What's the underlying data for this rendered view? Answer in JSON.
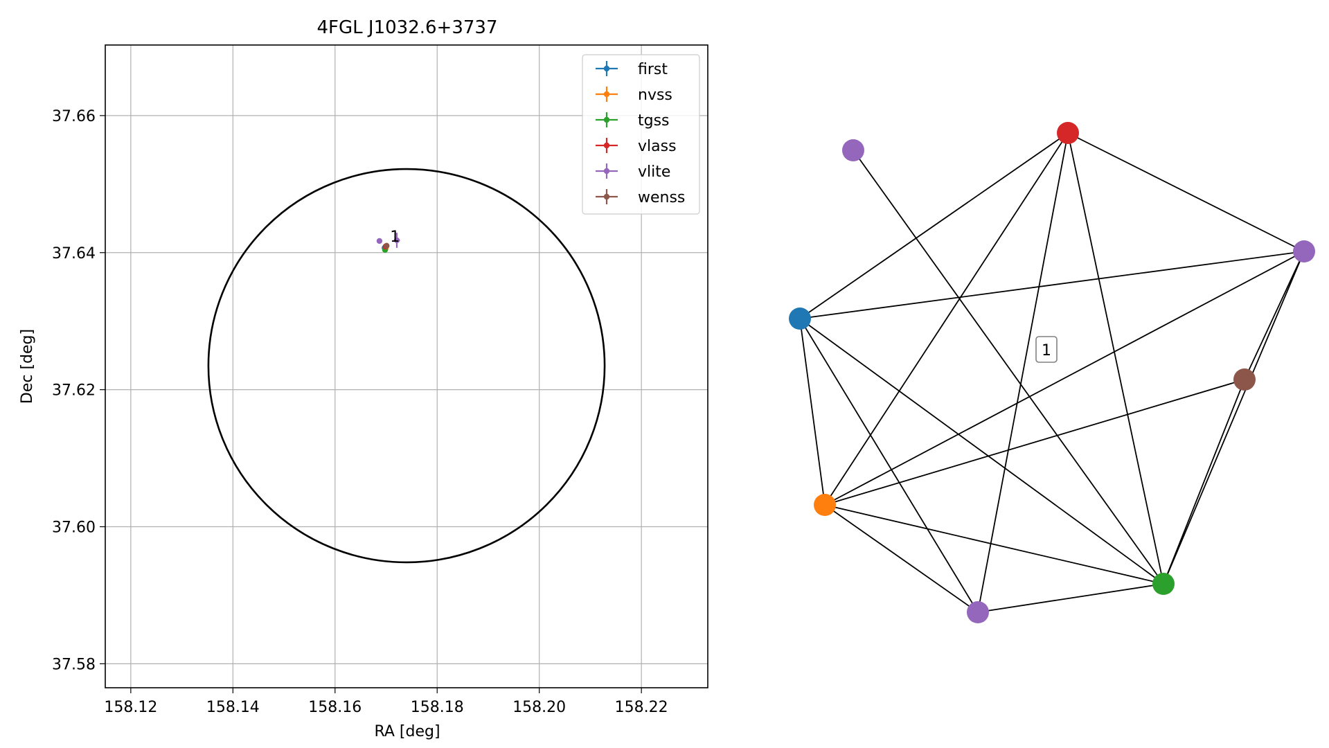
{
  "chart_data": [
    {
      "type": "scatter",
      "title": "4FGL J1032.6+3737",
      "xlabel": "RA [deg]",
      "ylabel": "Dec [deg]",
      "xlim": [
        158.115,
        158.233
      ],
      "ylim": [
        37.5765,
        37.6703
      ],
      "xticks": [
        158.12,
        158.14,
        158.16,
        158.18,
        158.2,
        158.22
      ],
      "xtick_labels": [
        "158.12",
        "158.14",
        "158.16",
        "158.18",
        "158.20",
        "158.22"
      ],
      "yticks": [
        37.58,
        37.6,
        37.62,
        37.64,
        37.66
      ],
      "ytick_labels": [
        "37.58",
        "37.60",
        "37.62",
        "37.64",
        "37.66"
      ],
      "grid": true,
      "legend_position": "top-right",
      "ellipse": {
        "center": [
          158.174,
          37.6235
        ],
        "semi_axis_ra": 0.0388,
        "semi_axis_dec": 0.0287,
        "color": "#000000"
      },
      "annotation": {
        "text": "1",
        "x": 158.172,
        "y": 37.6418
      },
      "series": [
        {
          "name": "first",
          "color": "#1f77b4",
          "points": [
            {
              "x": 158.1697,
              "y": 37.6407,
              "xerr": 0.0003,
              "yerr": 0.0003
            }
          ]
        },
        {
          "name": "nvss",
          "color": "#ff7f0e",
          "points": [
            {
              "x": 158.1699,
              "y": 37.6406,
              "xerr": 0.0004,
              "yerr": 0.0004
            }
          ]
        },
        {
          "name": "tgss",
          "color": "#2ca02c",
          "points": [
            {
              "x": 158.1698,
              "y": 37.6404,
              "xerr": 0.0003,
              "yerr": 0.0003
            }
          ]
        },
        {
          "name": "vlass",
          "color": "#d62728",
          "points": [
            {
              "x": 158.1699,
              "y": 37.6409,
              "xerr": 0.0002,
              "yerr": 0.0002
            }
          ]
        },
        {
          "name": "vlite",
          "color": "#9467bd",
          "points": [
            {
              "x": 158.1687,
              "y": 37.6417,
              "xerr": 0.0,
              "yerr": 0.0
            },
            {
              "x": 158.1721,
              "y": 37.6418,
              "xerr": 0.0006,
              "yerr": 0.0011
            }
          ]
        },
        {
          "name": "wenss",
          "color": "#8c564b",
          "points": [
            {
              "x": 158.1701,
              "y": 37.641,
              "xerr": 0.0004,
              "yerr": 0.0004
            }
          ]
        }
      ]
    },
    {
      "type": "network",
      "label": "1",
      "nodes": [
        {
          "id": "purple_top",
          "color": "#9467bd"
        },
        {
          "id": "red",
          "color": "#d62728"
        },
        {
          "id": "purple_right",
          "color": "#9467bd"
        },
        {
          "id": "blue",
          "color": "#1f77b4"
        },
        {
          "id": "brown",
          "color": "#8c564b"
        },
        {
          "id": "orange",
          "color": "#ff7f0e"
        },
        {
          "id": "green",
          "color": "#2ca02c"
        },
        {
          "id": "purple_bottom",
          "color": "#9467bd"
        }
      ],
      "edges": [
        [
          "blue",
          "red"
        ],
        [
          "blue",
          "purple_right"
        ],
        [
          "blue",
          "orange"
        ],
        [
          "blue",
          "green"
        ],
        [
          "blue",
          "purple_bottom"
        ],
        [
          "red",
          "purple_right"
        ],
        [
          "red",
          "orange"
        ],
        [
          "red",
          "green"
        ],
        [
          "red",
          "purple_bottom"
        ],
        [
          "purple_top",
          "green"
        ],
        [
          "purple_right",
          "orange"
        ],
        [
          "purple_right",
          "green"
        ],
        [
          "purple_right",
          "brown"
        ],
        [
          "brown",
          "orange"
        ],
        [
          "brown",
          "green"
        ],
        [
          "orange",
          "green"
        ],
        [
          "orange",
          "purple_bottom"
        ],
        [
          "green",
          "purple_bottom"
        ]
      ]
    }
  ]
}
